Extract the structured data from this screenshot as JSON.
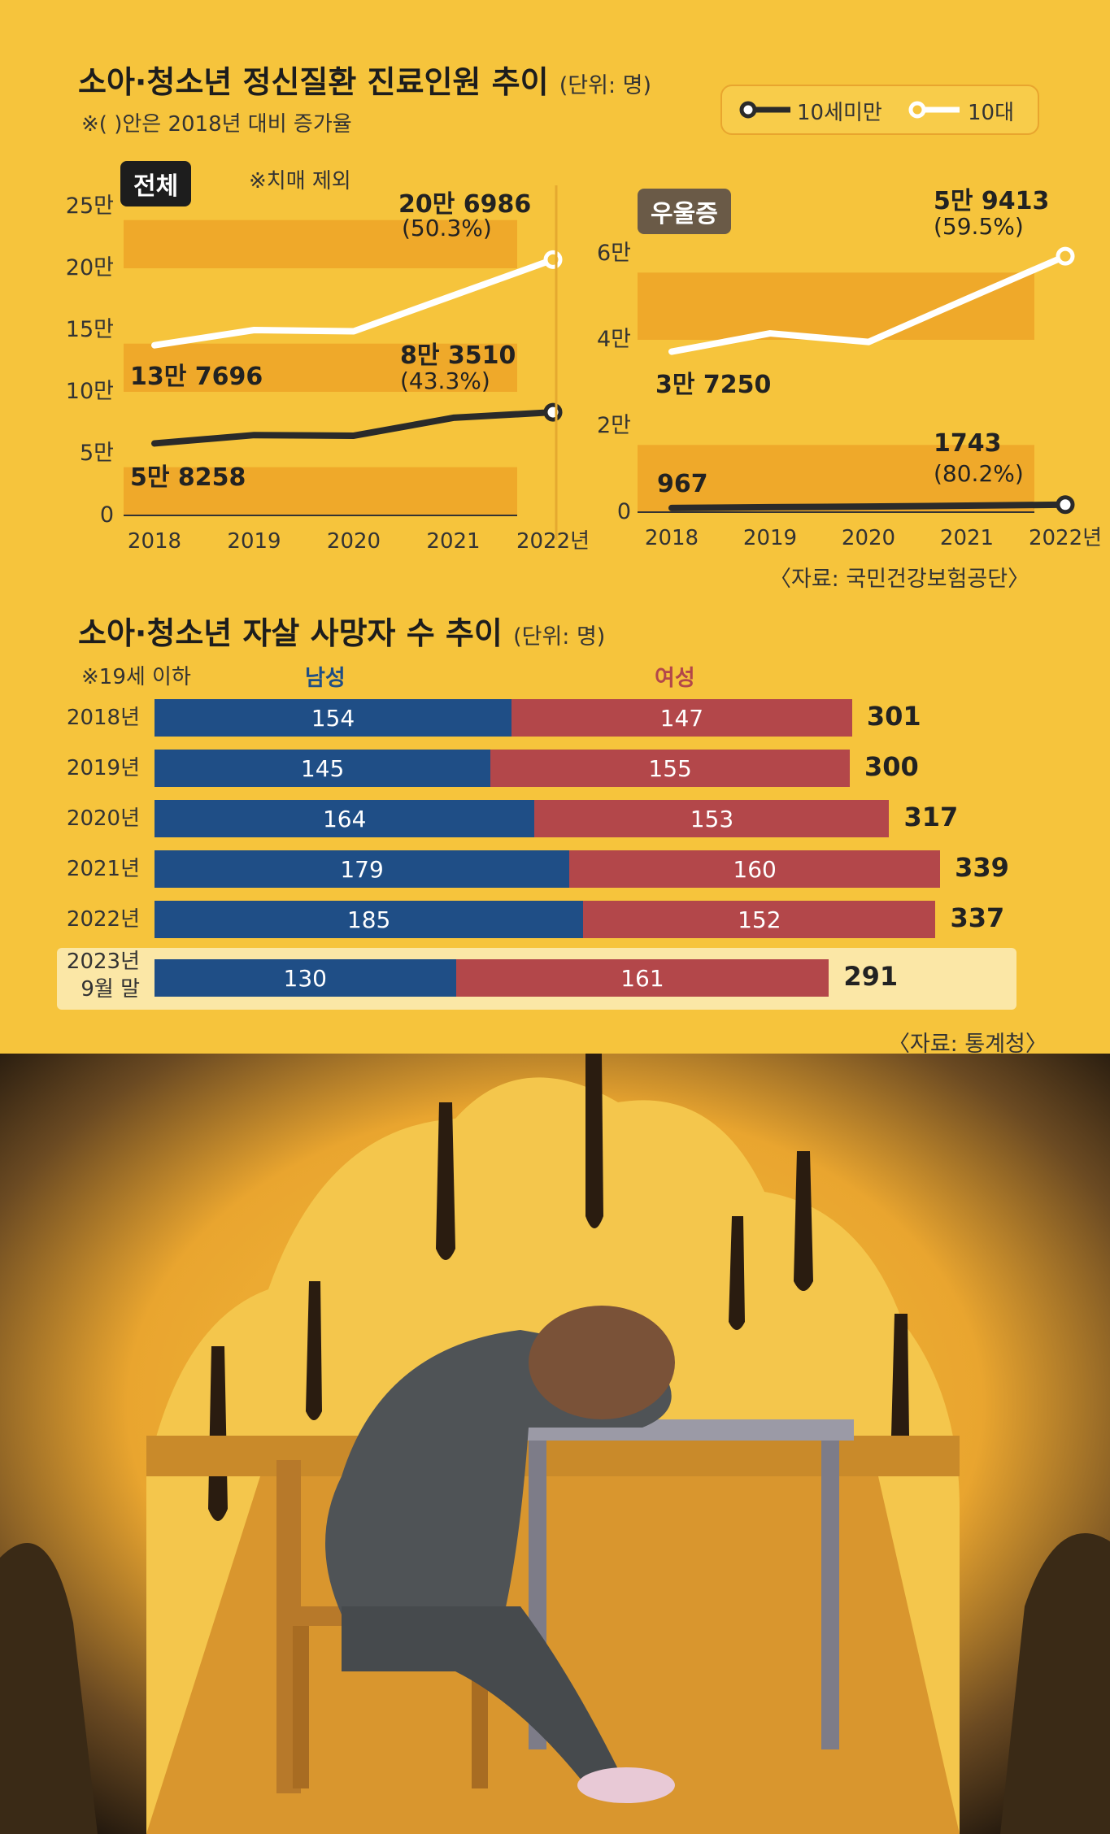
{
  "chart1": {
    "title": "소아·청소년 정신질환 진료인원 추이",
    "unit": "(단위: 명)",
    "note": "※( )안은 2018년 대비 증가율",
    "legend": {
      "under10": "10세미만",
      "teen": "10대"
    },
    "colors": {
      "under10": "#2a2a2a",
      "teen": "#ffffff",
      "band": "#efa92a",
      "bg": "#f6c43c"
    }
  },
  "chart_data": [
    {
      "type": "line",
      "panel": "전체",
      "panel_note": "※치매 제외",
      "x": [
        "2018",
        "2019",
        "2020",
        "2021",
        "2022년"
      ],
      "ylim": [
        0,
        250000
      ],
      "yticks": [
        "0",
        "5만",
        "10만",
        "15만",
        "20만",
        "25만"
      ],
      "series": [
        {
          "name": "10대",
          "values": [
            137696,
            150000,
            149000,
            178000,
            206986
          ]
        },
        {
          "name": "10세미만",
          "values": [
            58258,
            65000,
            64500,
            79000,
            83510
          ]
        }
      ],
      "labels": {
        "teen_start": "13만 7696",
        "teen_end": "20만 6986",
        "teen_end_pct": "(50.3%)",
        "under10_start": "5만 8258",
        "under10_end": "8만 3510",
        "under10_end_pct": "(43.3%)"
      }
    },
    {
      "type": "line",
      "panel": "우울증",
      "x": [
        "2018",
        "2019",
        "2020",
        "2021",
        "2022년"
      ],
      "ylim": [
        0,
        60000
      ],
      "yticks": [
        "0",
        "2만",
        "4만",
        "6만"
      ],
      "series": [
        {
          "name": "10대",
          "values": [
            37250,
            41500,
            39500,
            49500,
            59413
          ]
        },
        {
          "name": "10세미만",
          "values": [
            967,
            1150,
            1300,
            1500,
            1743
          ]
        }
      ],
      "labels": {
        "teen_start": "3만 7250",
        "teen_end": "5만 9413",
        "teen_end_pct": "(59.5%)",
        "under10_start": "967",
        "under10_end": "1743",
        "under10_end_pct": "(80.2%)"
      }
    },
    {
      "type": "bar",
      "stacked": true,
      "orientation": "horizontal",
      "title": "소아·청소년 자살 사망자 수 추이",
      "unit": "(단위: 명)",
      "note": "※19세 이하",
      "categories": [
        "2018년",
        "2019년",
        "2020년",
        "2021년",
        "2022년",
        "2023년 9월 말"
      ],
      "series": [
        {
          "name": "남성",
          "values": [
            154,
            145,
            164,
            179,
            185,
            130
          ],
          "color": "#1f4e86"
        },
        {
          "name": "여성",
          "values": [
            147,
            155,
            153,
            160,
            152,
            161
          ],
          "color": "#b3474a"
        }
      ],
      "totals": [
        301,
        300,
        317,
        339,
        337,
        291
      ],
      "source": "〈자료: 통계청〉"
    }
  ],
  "source1": "〈자료: 국민건강보험공단〉"
}
